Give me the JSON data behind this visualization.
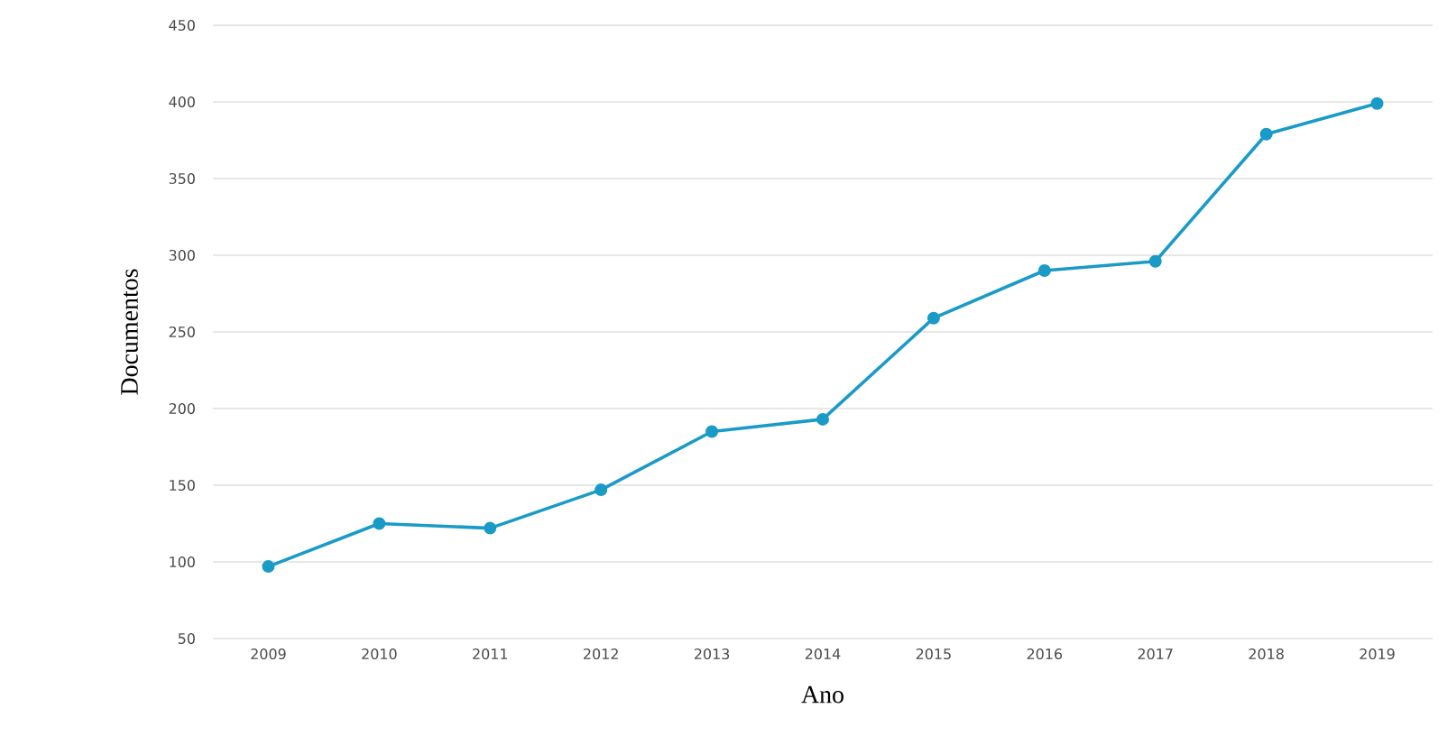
{
  "chart_data": {
    "type": "line",
    "xlabel": "Ano",
    "ylabel": "Documentos",
    "categories": [
      "2009",
      "2010",
      "2011",
      "2012",
      "2013",
      "2014",
      "2015",
      "2016",
      "2017",
      "2018",
      "2019"
    ],
    "series": [
      {
        "color": "#1a9bc7",
        "values": [
          97,
          125,
          122,
          147,
          185,
          193,
          259,
          290,
          296,
          379,
          399
        ]
      }
    ],
    "ylim": [
      50,
      450
    ],
    "yticks": [
      50,
      100,
      150,
      200,
      250,
      300,
      350,
      400,
      450
    ],
    "grid": "y",
    "marker": "circle",
    "line_style": "solid"
  }
}
